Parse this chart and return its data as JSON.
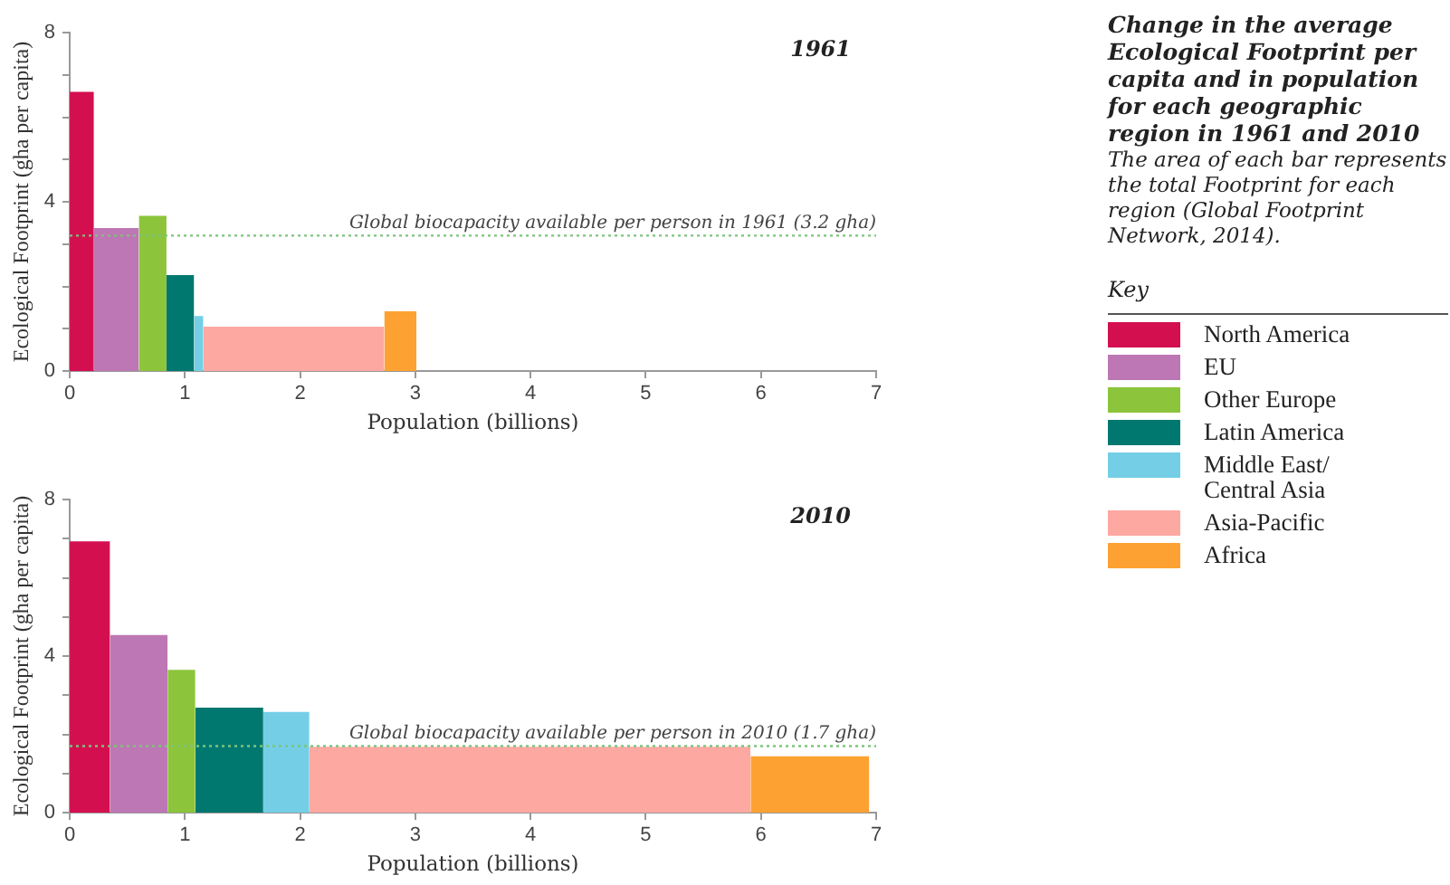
{
  "chart_data": [
    {
      "type": "histogram",
      "title": "1961",
      "xlabel": "Population (billions)",
      "ylabel": "Ecological Footprint (gha per capita)",
      "legend_title": "Key",
      "legend": "right",
      "annotations": [
        "Change in the average Ecological Footprint per capita and in population for each geographic region in 1961 and 2010",
        "The area of each bar represents the total Footprint for each region (Global Footprint Network, 2014)."
      ],
      "categories": [
        "North America",
        "EU",
        "Other Europe",
        "Latin America",
        "Middle East/ Central Asia",
        "Asia-Pacific",
        "Africa"
      ],
      "colors": [
        "#d40f4f",
        "#bd77b4",
        "#8cc43c",
        "#00786f",
        "#74cfe6",
        "#fea8a2",
        "#fda232"
      ],
      "bins": [
        0,
        0.21,
        0.6,
        0.84,
        1.08,
        1.16,
        2.73,
        3.01
      ],
      "values": [
        6.6,
        3.38,
        3.67,
        2.27,
        1.3,
        1.05,
        1.41
      ],
      "xlim": [
        0,
        7
      ],
      "xticks": [
        0,
        1,
        2,
        3,
        4,
        5,
        6,
        7
      ],
      "ylim": [
        0,
        8
      ],
      "yticks": [
        0,
        {
          "value": 1,
          "label": null
        },
        {
          "value": 2,
          "label": null
        },
        {
          "value": 3,
          "label": null
        },
        4,
        {
          "value": 5,
          "label": null
        },
        {
          "value": 6,
          "label": null
        },
        {
          "value": 7,
          "label": null
        },
        8
      ],
      "ref_lines": [
        {
          "axis": "y",
          "value": 3.2,
          "label": "Global biocapacity available per person in 1961 (3.2 gha)",
          "color": "#7cc47c",
          "line_style": "dotted"
        }
      ]
    },
    {
      "type": "histogram",
      "title": "2010",
      "xlabel": "Population (billions)",
      "ylabel": "Ecological Footprint (gha per capita)",
      "colors": [
        "#d40f4f",
        "#bd77b4",
        "#8cc43c",
        "#00786f",
        "#74cfe6",
        "#fea8a2",
        "#fda232"
      ],
      "bins": [
        0,
        0.35,
        0.85,
        1.09,
        1.68,
        2.08,
        5.91,
        6.94
      ],
      "values": [
        6.93,
        4.54,
        3.65,
        2.68,
        2.57,
        1.68,
        1.44
      ],
      "xlim": [
        0,
        7
      ],
      "xticks": [
        0,
        1,
        2,
        3,
        4,
        5,
        6,
        7
      ],
      "ylim": [
        0,
        8
      ],
      "yticks": [
        0,
        {
          "value": 1,
          "label": null
        },
        {
          "value": 2,
          "label": null
        },
        {
          "value": 3,
          "label": null
        },
        4,
        {
          "value": 5,
          "label": null
        },
        {
          "value": 6,
          "label": null
        },
        {
          "value": 7,
          "label": null
        },
        8
      ],
      "ref_lines": [
        {
          "axis": "y",
          "value": 1.7,
          "label": "Global biocapacity available per person in 2010 (1.7 gha)",
          "color": "#7cc47c",
          "line_style": "dotted"
        }
      ]
    }
  ]
}
